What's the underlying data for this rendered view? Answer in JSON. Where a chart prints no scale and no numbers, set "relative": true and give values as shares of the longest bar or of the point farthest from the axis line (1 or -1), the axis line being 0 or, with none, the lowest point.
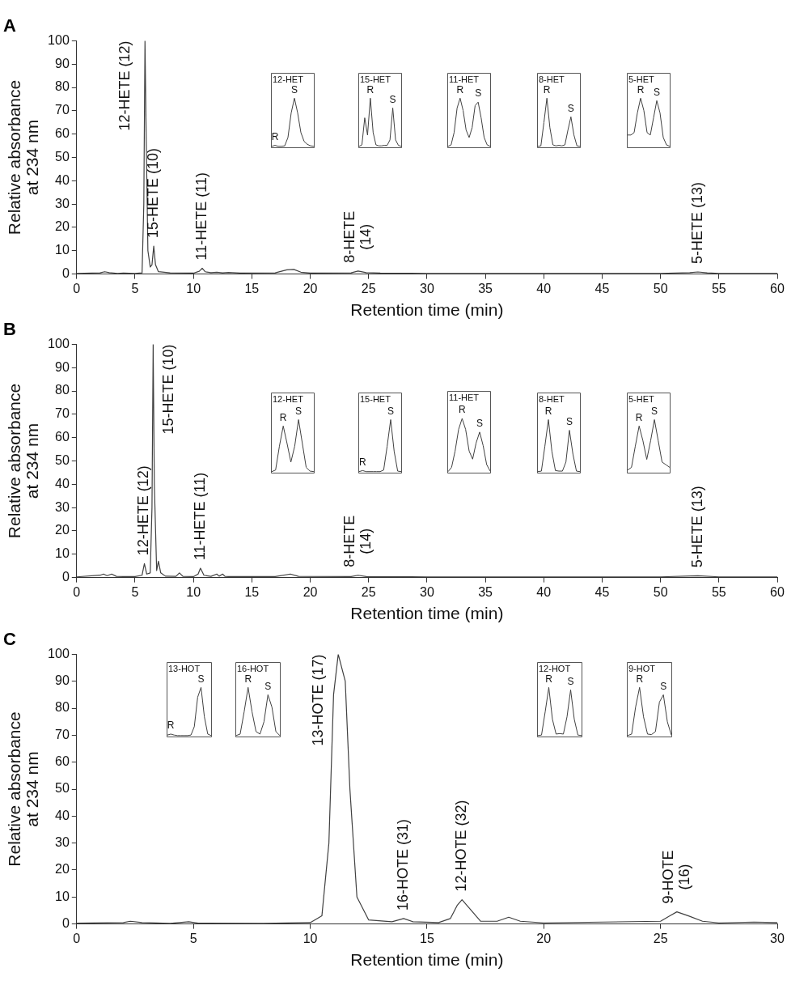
{
  "chart_data": [
    {
      "type": "line",
      "title": "A",
      "xlabel": "Retention time (min)",
      "ylabel": "Relative absorbance\nat 234 nm",
      "color": "#404040",
      "xlim": [
        0,
        60
      ],
      "xticks": [
        0,
        5,
        10,
        15,
        20,
        25,
        30,
        35,
        40,
        45,
        50,
        55,
        60
      ],
      "ylim": [
        0,
        100
      ],
      "yticks": [
        0,
        10,
        20,
        30,
        40,
        50,
        60,
        70,
        80,
        90,
        100
      ],
      "grid": false,
      "legend": false,
      "x": [
        0,
        2,
        2.4,
        2.8,
        3.5,
        4,
        5,
        5.6,
        5.75,
        5.85,
        5.95,
        6.1,
        6.3,
        6.45,
        6.6,
        6.75,
        7,
        8,
        10,
        10.5,
        10.75,
        11,
        11.5,
        12,
        12.5,
        13,
        14,
        17,
        18,
        18.6,
        19.2,
        20,
        23.5,
        24.1,
        24.8,
        26,
        30,
        40,
        50,
        52.5,
        53.2,
        54,
        55,
        60
      ],
      "values": [
        0.3,
        0.5,
        1,
        0.6,
        0.3,
        0.4,
        0.3,
        0.5,
        30,
        100,
        60,
        10,
        3,
        4,
        12,
        4,
        1,
        0.5,
        0.4,
        1.2,
        2.5,
        1,
        0.6,
        0.8,
        0.5,
        0.7,
        0.4,
        0.5,
        1.8,
        2,
        0.8,
        0.4,
        0.5,
        1.3,
        0.6,
        0.4,
        0.3,
        0.3,
        0.3,
        0.6,
        0.9,
        0.5,
        0.3,
        0.3
      ],
      "annotations": [
        {
          "text": "12-HETE (12)",
          "x": 5.85,
          "y": 100
        },
        {
          "text": "15-HETE (10)",
          "x": 6.6,
          "y": 12
        },
        {
          "text": "11-HETE (11)",
          "x": 10.75,
          "y": 2.5
        },
        {
          "text": "8-HETE\n(14)",
          "x": 24.1,
          "y": 1.3
        },
        {
          "text": "5-HETE (13)",
          "x": 53.2,
          "y": 0.9
        }
      ]
    },
    {
      "type": "line",
      "relative": true,
      "title": "12-HET",
      "color": "#404040",
      "categories": [
        null,
        null,
        null,
        null,
        null,
        null,
        null,
        null,
        null,
        null,
        null,
        null,
        null,
        null
      ],
      "values": [
        0.02,
        0.04,
        0.02,
        0.02,
        0.03,
        0.2,
        0.7,
        1,
        0.7,
        0.3,
        0.12,
        0.06,
        0.03,
        0.02
      ],
      "annotations": [
        "R",
        "S"
      ]
    },
    {
      "type": "line",
      "relative": true,
      "title": "15-HET",
      "color": "#404040",
      "categories": [
        null,
        null,
        null,
        null,
        null,
        null,
        null,
        null,
        null,
        null,
        null,
        null,
        null,
        null,
        null,
        null
      ],
      "values": [
        0.02,
        0.05,
        0.6,
        0.25,
        1,
        0.3,
        0.05,
        0.03,
        0.03,
        0.04,
        0.04,
        0.15,
        0.8,
        0.15,
        0.04,
        0.02
      ],
      "annotations": [
        "R",
        "S"
      ]
    },
    {
      "type": "line",
      "relative": true,
      "title": "11-HET",
      "color": "#404040",
      "categories": [
        null,
        null,
        null,
        null,
        null,
        null,
        null,
        null,
        null,
        null,
        null,
        null,
        null,
        null,
        null
      ],
      "values": [
        0.02,
        0.05,
        0.3,
        0.8,
        1,
        0.75,
        0.35,
        0.2,
        0.4,
        0.85,
        0.92,
        0.6,
        0.2,
        0.05,
        0.02
      ],
      "annotations": [
        "R",
        "S"
      ]
    },
    {
      "type": "line",
      "relative": true,
      "title": "8-HET",
      "color": "#404040",
      "categories": [
        null,
        null,
        null,
        null,
        null,
        null,
        null,
        null,
        null,
        null,
        null,
        null,
        null,
        null,
        null
      ],
      "values": [
        0.02,
        0.03,
        0.5,
        1,
        0.4,
        0.05,
        0.03,
        0.04,
        0.03,
        0.05,
        0.35,
        0.62,
        0.25,
        0.03,
        0.02
      ],
      "annotations": [
        "R",
        "S"
      ]
    },
    {
      "type": "line",
      "relative": true,
      "title": "5-HET",
      "color": "#404040",
      "categories": [
        null,
        null,
        null,
        null,
        null,
        null,
        null,
        null,
        null,
        null,
        null,
        null,
        null,
        null
      ],
      "values": [
        0.25,
        0.25,
        0.3,
        0.7,
        1,
        0.75,
        0.3,
        0.25,
        0.6,
        0.95,
        0.7,
        0.2,
        0.05,
        0.02
      ],
      "annotations": [
        "R",
        "S"
      ]
    },
    {
      "type": "line",
      "title": "B",
      "xlabel": "Retention time (min)",
      "ylabel": "Relative absorbance\nat 234 nm",
      "color": "#404040",
      "xlim": [
        0,
        60
      ],
      "xticks": [
        0,
        5,
        10,
        15,
        20,
        25,
        30,
        35,
        40,
        45,
        50,
        55,
        60
      ],
      "ylim": [
        0,
        100
      ],
      "yticks": [
        0,
        10,
        20,
        30,
        40,
        50,
        60,
        70,
        80,
        90,
        100
      ],
      "grid": false,
      "legend": false,
      "x": [
        0,
        2,
        2.3,
        2.6,
        3,
        3.4,
        4,
        5,
        5.6,
        5.8,
        6,
        6.3,
        6.45,
        6.55,
        6.65,
        6.85,
        7,
        7.2,
        7.6,
        8.5,
        8.8,
        9.1,
        10,
        10.4,
        10.6,
        10.9,
        11.5,
        12,
        12.2,
        12.5,
        12.7,
        13,
        17,
        18.3,
        19,
        23.5,
        24.1,
        24.8,
        30,
        50,
        53.2,
        55,
        60
      ],
      "values": [
        0.3,
        1,
        1.5,
        0.8,
        1.5,
        0.5,
        0.4,
        0.4,
        1,
        6,
        1.5,
        2,
        30,
        100,
        40,
        3,
        7,
        2,
        0.6,
        0.5,
        2,
        0.5,
        0.4,
        1.5,
        4,
        1,
        0.5,
        1.5,
        0.6,
        1.5,
        0.5,
        0.4,
        0.4,
        1.5,
        0.5,
        0.4,
        1,
        0.4,
        0.3,
        0.3,
        0.8,
        0.3,
        0.3
      ],
      "annotations": [
        {
          "text": "12-HETE (12)",
          "x": 5.8,
          "y": 6
        },
        {
          "text": "15-HETE (10)",
          "x": 6.55,
          "y": 100
        },
        {
          "text": "11-HETE (11)",
          "x": 10.6,
          "y": 4
        },
        {
          "text": "8-HETE\n(14)",
          "x": 24.1,
          "y": 1
        },
        {
          "text": "5-HETE (13)",
          "x": 53.2,
          "y": 0.8
        }
      ]
    },
    {
      "type": "line",
      "relative": true,
      "title": "12-HET",
      "color": "#404040",
      "categories": [
        null,
        null,
        null,
        null,
        null,
        null,
        null,
        null,
        null,
        null,
        null,
        null
      ],
      "values": [
        0.02,
        0.05,
        0.5,
        0.88,
        0.55,
        0.2,
        0.5,
        1,
        0.55,
        0.1,
        0.03,
        0.02
      ],
      "annotations": [
        "R",
        "S"
      ]
    },
    {
      "type": "line",
      "relative": true,
      "title": "15-HET",
      "color": "#404040",
      "categories": [
        null,
        null,
        null,
        null,
        null,
        null,
        null,
        null,
        null,
        null,
        null,
        null,
        null
      ],
      "values": [
        0.02,
        0.04,
        0.02,
        0.02,
        0.02,
        0.02,
        0.02,
        0.05,
        0.5,
        1,
        0.4,
        0.03,
        0.02
      ],
      "annotations": [
        "R",
        "S"
      ]
    },
    {
      "type": "line",
      "relative": true,
      "title": "11-HET",
      "color": "#404040",
      "categories": [
        null,
        null,
        null,
        null,
        null,
        null,
        null,
        null,
        null,
        null,
        null,
        null,
        null
      ],
      "values": [
        0.02,
        0.1,
        0.4,
        0.8,
        1,
        0.8,
        0.4,
        0.25,
        0.55,
        0.75,
        0.5,
        0.15,
        0.03
      ],
      "annotations": [
        "R",
        "S"
      ]
    },
    {
      "type": "line",
      "relative": true,
      "title": "8-HET",
      "color": "#404040",
      "categories": [
        null,
        null,
        null,
        null,
        null,
        null,
        null,
        null,
        null,
        null,
        null,
        null,
        null
      ],
      "values": [
        0.02,
        0.03,
        0.5,
        1,
        0.4,
        0.04,
        0.03,
        0.03,
        0.2,
        0.8,
        0.35,
        0.03,
        0.02
      ],
      "annotations": [
        "R",
        "S"
      ]
    },
    {
      "type": "line",
      "relative": true,
      "title": "5-HET",
      "color": "#404040",
      "categories": [
        null,
        null,
        null,
        null,
        null,
        null,
        null,
        null,
        null,
        null,
        null,
        null
      ],
      "values": [
        0.05,
        0.1,
        0.5,
        0.88,
        0.6,
        0.25,
        0.6,
        1,
        0.6,
        0.2,
        0.15,
        0.1
      ],
      "annotations": [
        "R",
        "S"
      ]
    },
    {
      "type": "line",
      "title": "C",
      "xlabel": "Retention time (min)",
      "ylabel": "Relative absorbance\nat 234 nm",
      "color": "#404040",
      "xlim": [
        0,
        30
      ],
      "xticks": [
        0,
        5,
        10,
        15,
        20,
        25,
        30
      ],
      "ylim": [
        0,
        100
      ],
      "yticks": [
        0,
        10,
        20,
        30,
        40,
        50,
        60,
        70,
        80,
        90,
        100
      ],
      "grid": false,
      "legend": false,
      "x": [
        0,
        2,
        2.3,
        2.8,
        4,
        4.8,
        5.2,
        8,
        10,
        10.5,
        10.8,
        11,
        11.2,
        11.5,
        11.7,
        12,
        12.5,
        13.5,
        14,
        14.4,
        15.5,
        16,
        16.3,
        16.5,
        16.8,
        17.3,
        18,
        18.5,
        19,
        20,
        25,
        25.4,
        25.7,
        26.2,
        26.8,
        27.5,
        29,
        30
      ],
      "values": [
        0.3,
        0.5,
        1,
        0.5,
        0.2,
        0.8,
        0.3,
        0.2,
        0.5,
        3,
        30,
        85,
        100,
        90,
        50,
        10,
        1.5,
        0.8,
        2,
        0.8,
        0.5,
        2,
        7,
        9,
        6,
        1,
        1,
        2.5,
        1,
        0.4,
        1,
        3,
        4.5,
        3,
        1,
        0.4,
        0.7,
        0.5
      ],
      "annotations": [
        {
          "text": "13-HOTE (17)",
          "x": 11.2,
          "y": 100
        },
        {
          "text": "16-HOTE (31)",
          "x": 14,
          "y": 2
        },
        {
          "text": "12-HOTE (32)",
          "x": 16.5,
          "y": 9
        },
        {
          "text": "9-HOTE\n(16)",
          "x": 25.7,
          "y": 4.5
        }
      ]
    },
    {
      "type": "line",
      "relative": true,
      "title": "13-HOT",
      "color": "#404040",
      "categories": [
        null,
        null,
        null,
        null,
        null,
        null,
        null,
        null,
        null,
        null,
        null,
        null,
        null,
        null
      ],
      "values": [
        0.03,
        0.05,
        0.03,
        0.02,
        0.02,
        0.02,
        0.02,
        0.03,
        0.2,
        0.8,
        1,
        0.4,
        0.05,
        0.02
      ],
      "annotations": [
        "R",
        "S"
      ]
    },
    {
      "type": "line",
      "relative": true,
      "title": "16-HOT",
      "color": "#404040",
      "categories": [
        null,
        null,
        null,
        null,
        null,
        null,
        null,
        null,
        null,
        null,
        null,
        null
      ],
      "values": [
        0.02,
        0.05,
        0.5,
        1,
        0.5,
        0.1,
        0.05,
        0.3,
        0.85,
        0.6,
        0.1,
        0.02
      ],
      "annotations": [
        "R",
        "S"
      ]
    },
    {
      "type": "line",
      "relative": true,
      "title": "12-HOT",
      "color": "#404040",
      "categories": [
        null,
        null,
        null,
        null,
        null,
        null,
        null,
        null,
        null,
        null,
        null,
        null,
        null
      ],
      "values": [
        0.02,
        0.03,
        0.5,
        1,
        0.35,
        0.05,
        0.06,
        0.05,
        0.4,
        0.95,
        0.35,
        0.03,
        0.02
      ],
      "annotations": [
        "R",
        "S"
      ]
    },
    {
      "type": "line",
      "relative": true,
      "title": "9-HOT",
      "color": "#404040",
      "categories": [
        null,
        null,
        null,
        null,
        null,
        null,
        null,
        null,
        null,
        null,
        null,
        null
      ],
      "values": [
        0.02,
        0.05,
        0.6,
        1,
        0.4,
        0.05,
        0.04,
        0.1,
        0.7,
        0.85,
        0.3,
        0.03
      ],
      "annotations": [
        "R",
        "S"
      ]
    }
  ]
}
